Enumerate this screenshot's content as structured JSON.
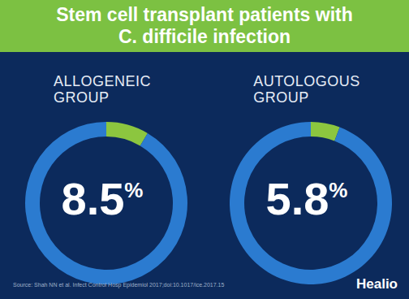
{
  "title": "Stem cell transplant patients with C. difficile infection",
  "source": "Source: Shah NN et al. Infect Control Hosp Epidemiol 2017;doi:10.1017/ice.2017.15",
  "logo": "Healio",
  "chart_data": [
    {
      "type": "pie",
      "title": "ALLOGENEIC GROUP",
      "values": [
        8.5,
        91.5
      ],
      "colors": [
        "#8cc63f",
        "#2b7bd0"
      ],
      "data_labels": true,
      "value_labels": [
        "8.5%",
        null
      ]
    },
    {
      "type": "pie",
      "title": "AUTOLOGOUS GROUP",
      "values": [
        5.8,
        94.2
      ],
      "colors": [
        "#8cc63f",
        "#2b7bd0"
      ],
      "data_labels": true,
      "value_labels": [
        "5.8%",
        null
      ]
    }
  ]
}
